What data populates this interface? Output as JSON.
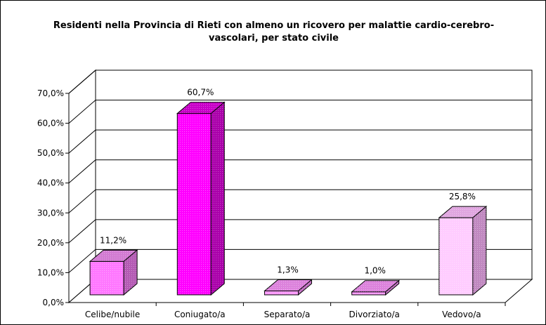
{
  "chart_data": {
    "type": "bar",
    "title": "Residenti nella Provincia di Rieti con almeno un ricovero per malattie cardio-cerebro-vascolari, per stato civile",
    "categories": [
      "Celibe/nubile",
      "Coniugato/a",
      "Separato/a",
      "Divorziato/a",
      "Vedovo/a"
    ],
    "values": [
      11.2,
      60.7,
      1.3,
      1.0,
      25.8
    ],
    "data_labels": [
      "11,2%",
      "60,7%",
      "1,3%",
      "1,0%",
      "25,8%"
    ],
    "ylim": [
      0,
      70
    ],
    "yticks": [
      "0,0%",
      "10,0%",
      "20,0%",
      "30,0%",
      "40,0%",
      "50,0%",
      "60,0%",
      "70,0%"
    ],
    "xlabel": "",
    "ylabel": "",
    "grid": true,
    "legend": "none",
    "colors": {
      "Celibe/nubile": {
        "front": "#ff77ff",
        "top": "#d27ad2",
        "side": "#b45ab4"
      },
      "Coniugato/a": {
        "front": "#ff00ff",
        "top": "#c800c8",
        "side": "#aa00aa"
      },
      "Separato/a": {
        "front": "#ff99ff",
        "top": "#dc82dc",
        "side": "#c06ec0"
      },
      "Divorziato/a": {
        "front": "#ff99ff",
        "top": "#dc82dc",
        "side": "#c06ec0"
      },
      "Vedovo/a": {
        "front": "#ffccff",
        "top": "#e0a6e0",
        "side": "#c088c0"
      }
    }
  }
}
